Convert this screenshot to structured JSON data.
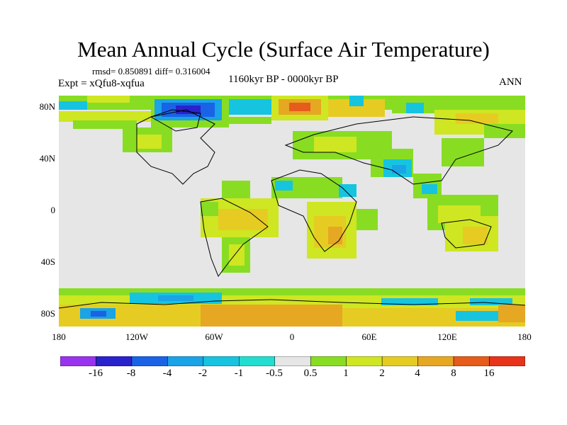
{
  "title": "Mean Annual Cycle (Surface Air Temperature)",
  "stats": "rmsd= 0.850891 diff= 0.316004",
  "expt": "Expt = xQfu8-xqfua",
  "period": "1160kyr BP - 0000kyr BP",
  "season": "ANN",
  "map": {
    "lat_labels": [
      "80N",
      "40N",
      "0",
      "40S",
      "80S"
    ],
    "lon_labels": [
      "180",
      "120W",
      "60W",
      "0",
      "60E",
      "120E",
      "180"
    ],
    "lat_range": [
      -90,
      90
    ],
    "lon_range": [
      -180,
      180
    ],
    "background_color": "#e6e6e6"
  },
  "colorbar": {
    "colors": [
      "#9933ee",
      "#2a22cc",
      "#1a63e6",
      "#1aa3e6",
      "#16c4e0",
      "#22ddd0",
      "#e6e6e6",
      "#88dd22",
      "#cfe622",
      "#e6cc22",
      "#e6a722",
      "#e65c1a",
      "#e6331a"
    ],
    "labels": [
      "-16",
      "-8",
      "-4",
      "-2",
      "-1",
      "-0.5",
      "0.5",
      "1",
      "2",
      "4",
      "8",
      "16"
    ]
  }
}
